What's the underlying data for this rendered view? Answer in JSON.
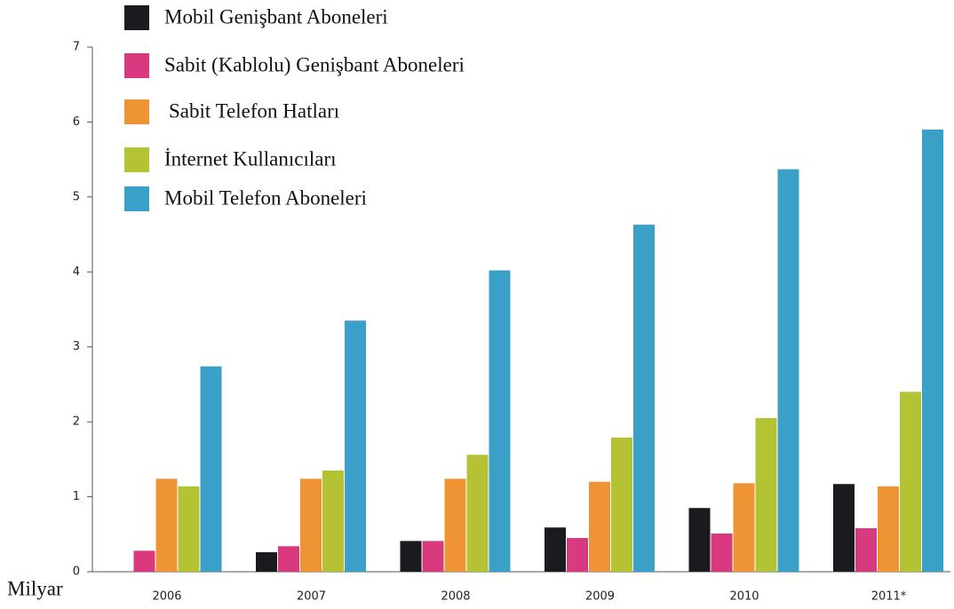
{
  "chart_data": {
    "type": "bar",
    "y_label": "Milyar",
    "categories": [
      "2006",
      "2007",
      "2008",
      "2009",
      "2010",
      "2011*"
    ],
    "series": [
      {
        "name": "Mobil Genişbant Aboneleri",
        "color": "#1a1a1f",
        "values": [
          0,
          0.26,
          0.41,
          0.59,
          0.85,
          1.17
        ]
      },
      {
        "name": "Sabit (Kablolu) Genişbant Aboneleri",
        "color": "#d93a7f",
        "values": [
          0.28,
          0.34,
          0.41,
          0.45,
          0.51,
          0.58
        ]
      },
      {
        "name": "Sabit Telefon Hatları",
        "color": "#ef9434",
        "values": [
          1.24,
          1.24,
          1.24,
          1.2,
          1.18,
          1.14
        ]
      },
      {
        "name": "İnternet Kullanıcıları",
        "color": "#b3c334",
        "values": [
          1.14,
          1.35,
          1.56,
          1.79,
          2.05,
          2.4
        ]
      },
      {
        "name": "Mobil Telefon Aboneleri",
        "color": "#3aa0c8",
        "values": [
          2.74,
          3.35,
          4.02,
          4.63,
          5.37,
          5.9
        ]
      }
    ],
    "ylim": [
      0,
      7
    ],
    "yticks": [
      0,
      1,
      2,
      3,
      4,
      5,
      6,
      7
    ],
    "grid": false
  }
}
